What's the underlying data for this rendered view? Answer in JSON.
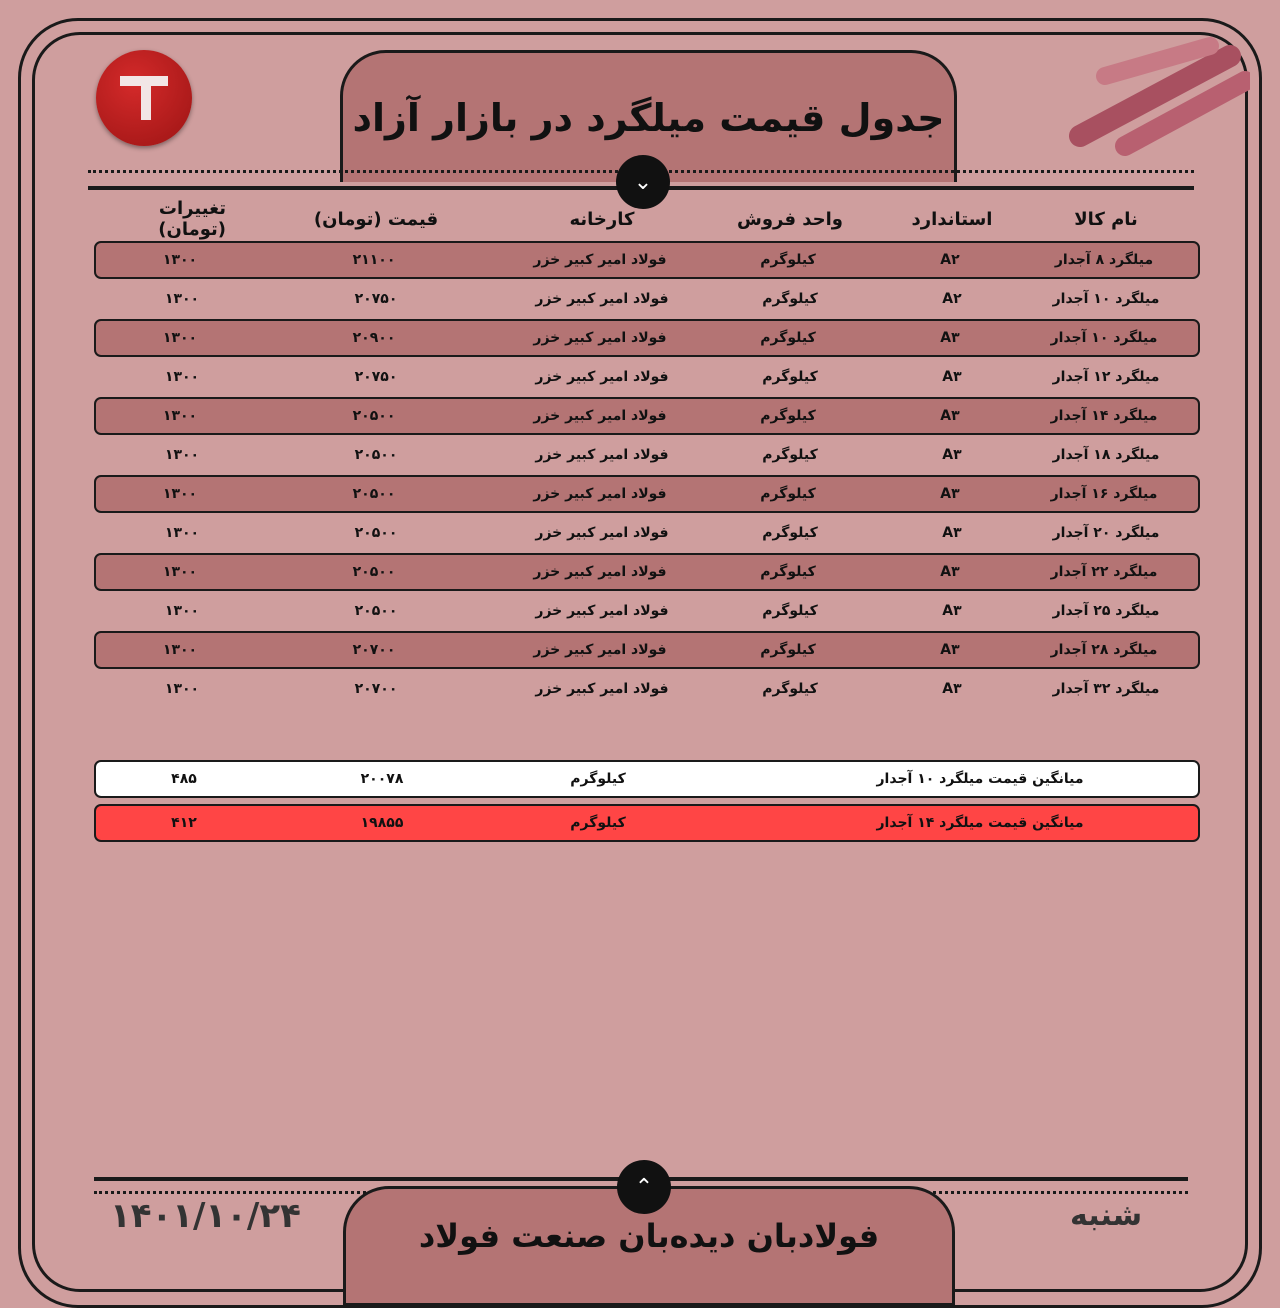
{
  "title": "جدول قیمت میلگرد در بازار آزاد",
  "footer_title": "فولادبان دیده‌بان صنعت فولاد",
  "date": "۱۴۰۱/۱۰/۲۴",
  "day": "شنبه",
  "colors": {
    "background": "#cf9e9e",
    "row_shade": "#b47474",
    "highlight": "#ff4545",
    "logo": "#c01c1c"
  },
  "headers": {
    "name": "نام کالا",
    "standard": "استاندارد",
    "unit": "واحد فروش",
    "factory": "کارخانه",
    "price": "قیمت (تومان)",
    "change": "تغییرات (تومان)"
  },
  "rows": [
    {
      "name": "میلگرد ۸ آجدار",
      "standard": "A۲",
      "unit": "کیلوگرم",
      "factory": "فولاد امیر کبیر خزر",
      "price": "۲۱۱۰۰",
      "change": "۱۳۰۰"
    },
    {
      "name": "میلگرد ۱۰ آجدار",
      "standard": "A۲",
      "unit": "کیلوگرم",
      "factory": "فولاد امیر کبیر خزر",
      "price": "۲۰۷۵۰",
      "change": "۱۳۰۰"
    },
    {
      "name": "میلگرد ۱۰ آجدار",
      "standard": "A۳",
      "unit": "کیلوگرم",
      "factory": "فولاد امیر کبیر خزر",
      "price": "۲۰۹۰۰",
      "change": "۱۳۰۰"
    },
    {
      "name": "میلگرد ۱۲ آجدار",
      "standard": "A۳",
      "unit": "کیلوگرم",
      "factory": "فولاد امیر کبیر خزر",
      "price": "۲۰۷۵۰",
      "change": "۱۳۰۰"
    },
    {
      "name": "میلگرد ۱۴ آجدار",
      "standard": "A۳",
      "unit": "کیلوگرم",
      "factory": "فولاد امیر کبیر خزر",
      "price": "۲۰۵۰۰",
      "change": "۱۳۰۰"
    },
    {
      "name": "میلگرد ۱۸ آجدار",
      "standard": "A۳",
      "unit": "کیلوگرم",
      "factory": "فولاد امیر کبیر خزر",
      "price": "۲۰۵۰۰",
      "change": "۱۳۰۰"
    },
    {
      "name": "میلگرد ۱۶ آجدار",
      "standard": "A۳",
      "unit": "کیلوگرم",
      "factory": "فولاد امیر کبیر خزر",
      "price": "۲۰۵۰۰",
      "change": "۱۳۰۰"
    },
    {
      "name": "میلگرد ۲۰ آجدار",
      "standard": "A۳",
      "unit": "کیلوگرم",
      "factory": "فولاد امیر کبیر خزر",
      "price": "۲۰۵۰۰",
      "change": "۱۳۰۰"
    },
    {
      "name": "میلگرد ۲۲ آجدار",
      "standard": "A۳",
      "unit": "کیلوگرم",
      "factory": "فولاد امیر کبیر خزر",
      "price": "۲۰۵۰۰",
      "change": "۱۳۰۰"
    },
    {
      "name": "میلگرد ۲۵ آجدار",
      "standard": "A۳",
      "unit": "کیلوگرم",
      "factory": "فولاد امیر کبیر خزر",
      "price": "۲۰۵۰۰",
      "change": "۱۳۰۰"
    },
    {
      "name": "میلگرد ۲۸ آجدار",
      "standard": "A۳",
      "unit": "کیلوگرم",
      "factory": "فولاد امیر کبیر خزر",
      "price": "۲۰۷۰۰",
      "change": "۱۳۰۰"
    },
    {
      "name": "میلگرد ۳۲ آجدار",
      "standard": "A۳",
      "unit": "کیلوگرم",
      "factory": "فولاد امیر کبیر خزر",
      "price": "۲۰۷۰۰",
      "change": "۱۳۰۰"
    }
  ],
  "summary": [
    {
      "label": "میانگین قیمت میلگرد ۱۰ آجدار",
      "unit": "کیلوگرم",
      "price": "۲۰۰۷۸",
      "change": "۴۸۵"
    },
    {
      "label": "میانگین قیمت میلگرد ۱۴ آجدار",
      "unit": "کیلوگرم",
      "price": "۱۹۸۵۵",
      "change": "۴۱۲"
    }
  ]
}
